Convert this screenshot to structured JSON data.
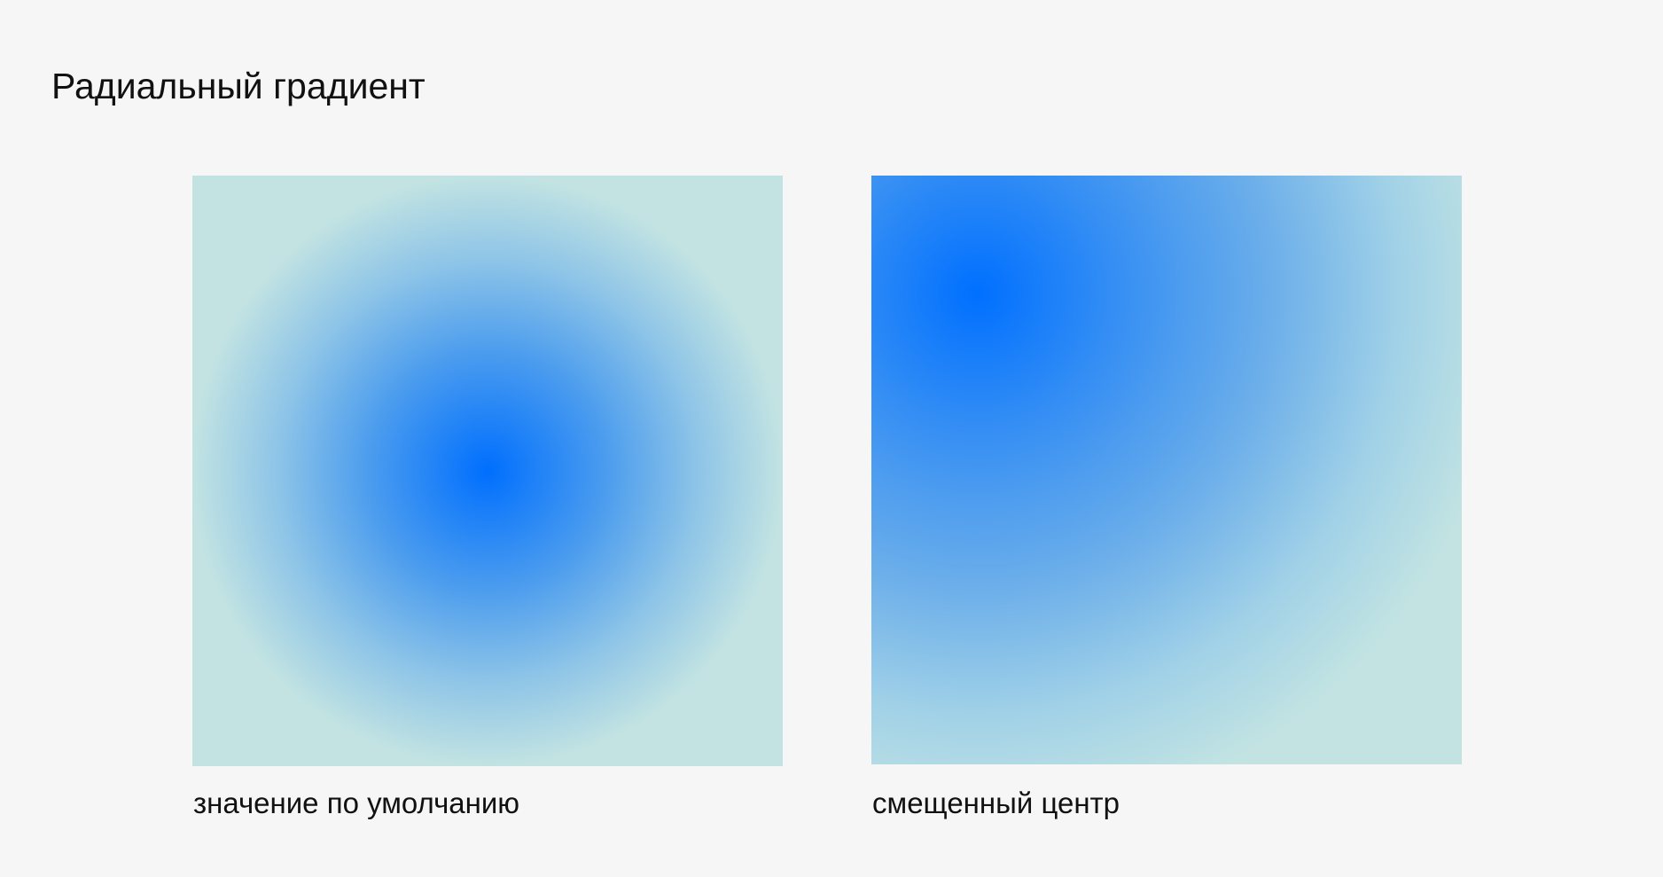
{
  "page": {
    "title": "Радиальный градиент",
    "background_color": "#f6f6f6"
  },
  "examples": [
    {
      "caption": "значение по умолчанию",
      "center_color": "#006ffe",
      "edge_color": "#c2e3e2"
    },
    {
      "caption": "смещенный центр",
      "center_color": "#0070ff",
      "edge_color": "#c2e3e2"
    }
  ]
}
